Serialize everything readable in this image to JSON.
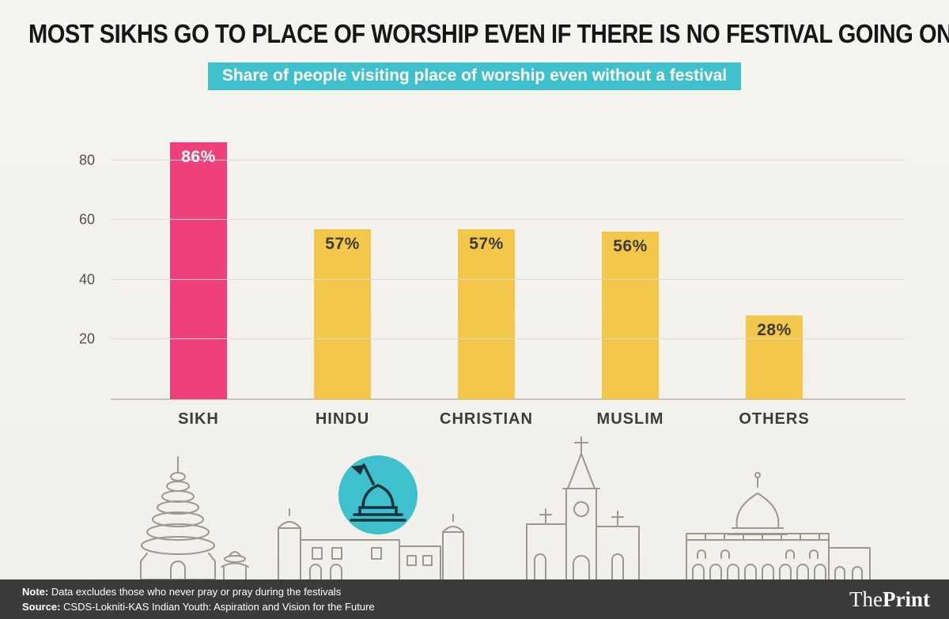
{
  "header": {
    "title": "MOST SIKHS GO TO PLACE OF WORSHIP EVEN IF THERE IS NO FESTIVAL GOING ON",
    "subtitle": "Share of people visiting place of worship even without a festival"
  },
  "chart_data": {
    "type": "bar",
    "categories": [
      "SIKH",
      "HINDU",
      "CHRISTIAN",
      "MUSLIM",
      "OTHERS"
    ],
    "values": [
      86,
      57,
      57,
      56,
      28
    ],
    "value_labels": [
      "86%",
      "57%",
      "57%",
      "56%",
      "28%"
    ],
    "bar_colors": [
      "#f0407c",
      "#f2c74a",
      "#f2c74a",
      "#f2c74a",
      "#f2c74a"
    ],
    "value_label_colors": [
      "#ffffff",
      "#3d3b36",
      "#3d3b36",
      "#3d3b36",
      "#3d3b36"
    ],
    "title": "Share of people visiting place of worship even without a festival",
    "xlabel": "",
    "ylabel": "",
    "ylim": [
      0,
      90
    ],
    "yticks": [
      20,
      40,
      60,
      80
    ],
    "grid": true,
    "legend": false
  },
  "colors": {
    "accent_pink": "#f0407c",
    "accent_yellow": "#f2c74a",
    "accent_teal": "#3fc0cd",
    "footer_bg": "#3b3b3b",
    "background": "#f5f3ee"
  },
  "footer": {
    "note_label": "Note:",
    "note_text": " Data excludes those who never pray or pray during the festivals",
    "source_label": "Source:",
    "source_text": " CSDS-Lokniti-KAS Indian Youth: Aspiration and Vision for the Future",
    "logo_the": "The",
    "logo_print": "Print"
  }
}
